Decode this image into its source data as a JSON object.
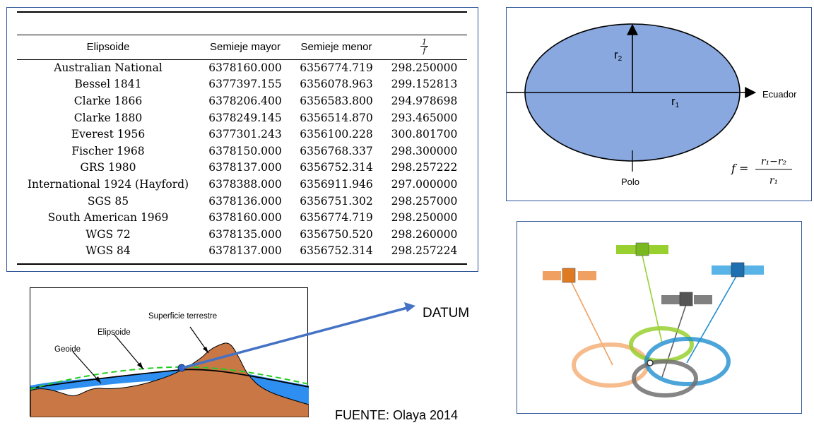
{
  "table": {
    "headers": [
      "Elipsoide",
      "Semieje mayor",
      "Semieje menor"
    ],
    "flattening_header": {
      "num": "1",
      "den": "f"
    },
    "rows": [
      [
        "Australian National",
        "6378160.000",
        "6356774.719",
        "298.250000"
      ],
      [
        "Bessel 1841",
        "6377397.155",
        "6356078.963",
        "299.152813"
      ],
      [
        "Clarke 1866",
        "6378206.400",
        "6356583.800",
        "294.978698"
      ],
      [
        "Clarke 1880",
        "6378249.145",
        "6356514.870",
        "293.465000"
      ],
      [
        "Everest 1956",
        "6377301.243",
        "6356100.228",
        "300.801700"
      ],
      [
        "Fischer 1968",
        "6378150.000",
        "6356768.337",
        "298.300000"
      ],
      [
        "GRS 1980",
        "6378137.000",
        "6356752.314",
        "298.257222"
      ],
      [
        "International 1924 (Hayford)",
        "6378388.000",
        "6356911.946",
        "297.000000"
      ],
      [
        "SGS 85",
        "6378136.000",
        "6356751.302",
        "298.257000"
      ],
      [
        "South American 1969",
        "6378160.000",
        "6356774.719",
        "298.250000"
      ],
      [
        "WGS 72",
        "6378135.000",
        "6356750.520",
        "298.260000"
      ],
      [
        "WGS 84",
        "6378137.000",
        "6356752.314",
        "298.257224"
      ]
    ]
  },
  "ellipse_diagram": {
    "r2_label": "r",
    "r2_sub": "2",
    "r1_label": "r",
    "r1_sub": "1",
    "equator_label": "Ecuador",
    "pole_label": "Polo",
    "formula_lhs": "f =",
    "formula_num": "r₁−r₂",
    "formula_den": "r₁",
    "fill_color": "#88a8df"
  },
  "datum_diagram": {
    "surface_label": "Superficie terrestre",
    "ellipsoid_label": "Elipsoide",
    "geoid_label": "Geoide"
  },
  "datum_label": "DATUM",
  "source_label": "FUENTE: Olaya 2014",
  "satellites": {
    "colors": [
      "#f0a060",
      "#98d030",
      "#606060",
      "#1e8ecf"
    ]
  }
}
